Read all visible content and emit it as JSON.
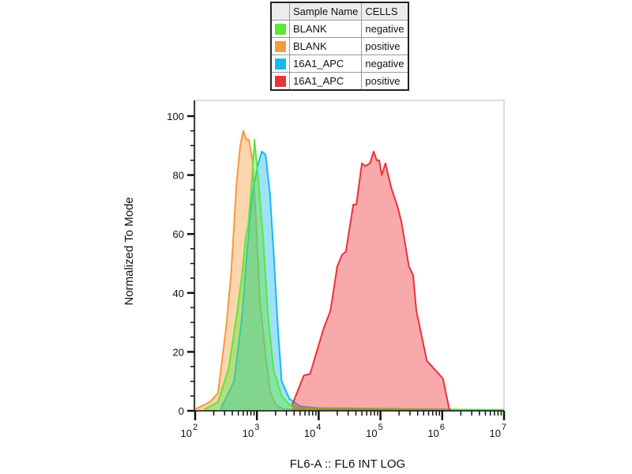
{
  "legend": {
    "headers": [
      "Sample Name",
      "CELLS"
    ],
    "rows": [
      {
        "sample": "BLANK",
        "cells": "negative",
        "color": "#5ee63a"
      },
      {
        "sample": "BLANK",
        "cells": "positive",
        "color": "#f59a3e"
      },
      {
        "sample": "16A1_APC",
        "cells": "negative",
        "color": "#1ab8ee"
      },
      {
        "sample": "16A1_APC",
        "cells": "positive",
        "color": "#ec3238"
      }
    ]
  },
  "chart_data": {
    "type": "area",
    "title": "",
    "xlabel": "FL6-A :: FL6 INT LOG",
    "ylabel": "Normalized To Mode",
    "x_scale": "log",
    "xlim": [
      100,
      10000000
    ],
    "ylim": [
      0,
      105
    ],
    "x_ticks": [
      {
        "exp": "2"
      },
      {
        "exp": "3"
      },
      {
        "exp": "4"
      },
      {
        "exp": "5"
      },
      {
        "exp": "6"
      },
      {
        "exp": "7"
      }
    ],
    "x_tick_base": "10",
    "y_ticks": [
      "0",
      "20",
      "40",
      "60",
      "80",
      "100"
    ],
    "grid": false,
    "legend_position": "top",
    "series": [
      {
        "sample": "BLANK",
        "cells": "positive",
        "color": "#f59a3e",
        "x_log10": [
          2.0,
          2.24,
          2.37,
          2.5,
          2.58,
          2.67,
          2.73,
          2.78,
          2.83,
          2.87,
          2.93,
          2.99,
          3.05,
          3.14,
          3.22,
          3.31,
          3.44,
          7.0
        ],
        "y": [
          0.5,
          3,
          6,
          28,
          46,
          77,
          90,
          95,
          92,
          92,
          85,
          63,
          37,
          19,
          6,
          2,
          0.5,
          0.3
        ]
      },
      {
        "sample": "16A1_APC",
        "cells": "negative",
        "color": "#1ab8ee",
        "x_log10": [
          2.41,
          2.63,
          2.76,
          2.84,
          2.93,
          3.01,
          3.08,
          3.14,
          3.21,
          3.27,
          3.34,
          3.4,
          3.53,
          3.7,
          3.95,
          4.08,
          7.0
        ],
        "y": [
          0.5,
          10,
          32,
          54,
          74,
          83,
          88,
          87,
          74,
          54,
          28,
          10,
          4,
          1.5,
          1,
          0.3,
          0.3
        ]
      },
      {
        "sample": "BLANK",
        "cells": "negative",
        "color": "#5ee63a",
        "x_log10": [
          2.15,
          2.37,
          2.54,
          2.67,
          2.76,
          2.82,
          2.86,
          2.93,
          2.96,
          3.02,
          3.1,
          3.18,
          3.27,
          3.4,
          3.53,
          3.7,
          7.0
        ],
        "y": [
          0.5,
          3,
          14,
          32,
          46,
          59,
          63,
          81,
          92,
          79,
          59,
          32,
          14,
          5,
          2,
          1,
          0.3
        ]
      },
      {
        "sample": "16A1_APC",
        "cells": "positive",
        "color": "#ec3238",
        "x_log10": [
          3.57,
          3.76,
          3.86,
          4.08,
          4.19,
          4.3,
          4.38,
          4.44,
          4.56,
          4.61,
          4.7,
          4.75,
          4.83,
          4.89,
          4.94,
          4.98,
          5.02,
          5.08,
          5.17,
          5.28,
          5.34,
          5.46,
          5.53,
          5.58,
          5.75,
          5.88,
          6.01,
          6.11,
          6.13
        ],
        "y": [
          2,
          12,
          12.5,
          28,
          34,
          49,
          53,
          54,
          70,
          70,
          84,
          83,
          84,
          88,
          85,
          85,
          80,
          84,
          76,
          69,
          64,
          49,
          46,
          34,
          17,
          14,
          11,
          1,
          0
        ]
      }
    ]
  }
}
